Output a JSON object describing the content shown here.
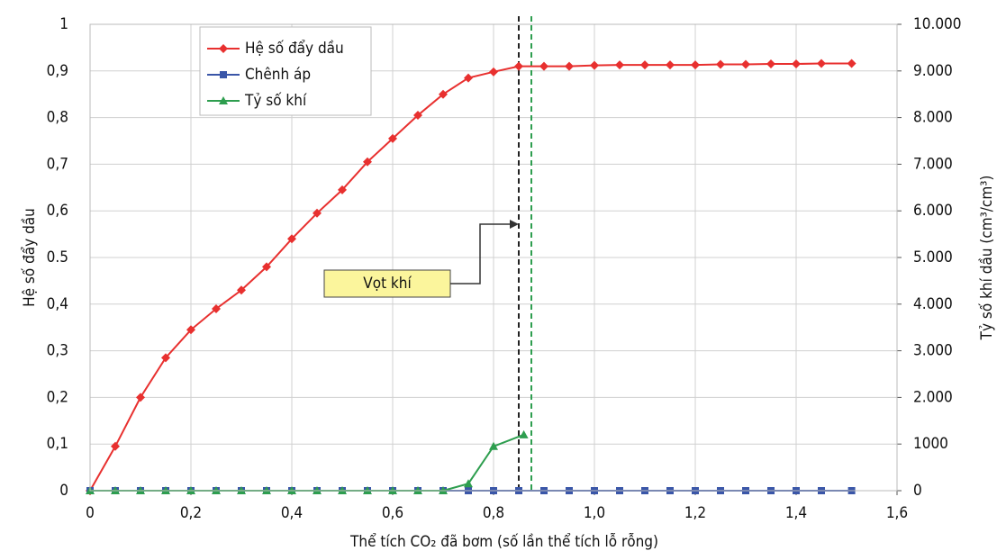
{
  "chart_data": {
    "type": "line",
    "xlabel": "Thể tích CO₂ đã bơm (số lần thể tích lỗ rỗng)",
    "ylabel": "Hệ số đẩy dầu",
    "y2label": "Tỷ số khí dầu (cm³/cm³)",
    "xlim": [
      0,
      1.6
    ],
    "xticks": [
      0,
      {
        "value": 0.2,
        "label": "0,2"
      },
      {
        "value": 0.4,
        "label": "0,4"
      },
      {
        "value": 0.6,
        "label": "0,6"
      },
      {
        "value": 0.8,
        "label": "0,8"
      },
      {
        "value": 1.0,
        "label": "1,0"
      },
      {
        "value": 1.2,
        "label": "1,2"
      },
      {
        "value": 1.4,
        "label": "1,4"
      },
      {
        "value": 1.6,
        "label": "1,6"
      }
    ],
    "ylim": [
      0,
      1
    ],
    "yticks": [
      0,
      {
        "value": 0.1,
        "label": "0,1"
      },
      {
        "value": 0.2,
        "label": "0,2"
      },
      {
        "value": 0.3,
        "label": "0,3"
      },
      {
        "value": 0.4,
        "label": "0,4"
      },
      {
        "value": 0.5,
        "label": "0.5"
      },
      {
        "value": 0.6,
        "label": "0,6"
      },
      {
        "value": 0.7,
        "label": "0,7"
      },
      {
        "value": 0.8,
        "label": "0,8"
      },
      {
        "value": 0.9,
        "label": "0,9"
      },
      1
    ],
    "y2lim": [
      0,
      10000
    ],
    "y2ticks": [
      0,
      1000,
      {
        "value": 2000,
        "label": "2.000"
      },
      {
        "value": 3000,
        "label": "3.000"
      },
      {
        "value": 4000,
        "label": "4.000"
      },
      {
        "value": 5000,
        "label": "5.000"
      },
      {
        "value": 6000,
        "label": "6.000"
      },
      {
        "value": 7000,
        "label": "7.000"
      },
      {
        "value": 8000,
        "label": "8.000"
      },
      {
        "value": 9000,
        "label": "9.000"
      },
      {
        "value": 10000,
        "label": "10.000"
      }
    ],
    "grid": true,
    "legend": "upper left",
    "series": [
      {
        "name": "Hệ số đẩy dầu",
        "color": "#e8302f",
        "marker": "diamond",
        "x": [
          0,
          0.05,
          0.1,
          0.15,
          0.2,
          0.25,
          0.3,
          0.35,
          0.4,
          0.45,
          0.5,
          0.55,
          0.6,
          0.65,
          0.7,
          0.75,
          0.8,
          0.85,
          0.9,
          0.95,
          1.0,
          1.05,
          1.1,
          1.15,
          1.2,
          1.25,
          1.3,
          1.35,
          1.4,
          1.45,
          1.51
        ],
        "values": [
          0,
          0.095,
          0.2,
          0.285,
          0.345,
          0.39,
          0.43,
          0.48,
          0.54,
          0.595,
          0.645,
          0.705,
          0.755,
          0.805,
          0.85,
          0.885,
          0.898,
          0.91,
          0.91,
          0.91,
          0.912,
          0.913,
          0.913,
          0.913,
          0.913,
          0.914,
          0.914,
          0.915,
          0.915,
          0.916,
          0.916
        ]
      },
      {
        "name": "Chênh áp",
        "color": "#3a56a8",
        "marker": "square",
        "x": [
          0,
          0.05,
          0.1,
          0.15,
          0.2,
          0.25,
          0.3,
          0.35,
          0.4,
          0.45,
          0.5,
          0.55,
          0.6,
          0.65,
          0.7,
          0.75,
          0.8,
          0.85,
          0.9,
          0.95,
          1.0,
          1.05,
          1.1,
          1.15,
          1.2,
          1.25,
          1.3,
          1.35,
          1.4,
          1.45,
          1.51
        ],
        "values": [
          0,
          0,
          0,
          0,
          0,
          0,
          0,
          0,
          0,
          0,
          0,
          0,
          0,
          0,
          0,
          0,
          0,
          0,
          0,
          0,
          0,
          0,
          0,
          0,
          0,
          0,
          0,
          0,
          0,
          0,
          0
        ]
      },
      {
        "name": "Tỷ số khí",
        "color": "#2e9e4f",
        "marker": "triangle",
        "axis": "y2",
        "x": [
          0,
          0.05,
          0.1,
          0.15,
          0.2,
          0.25,
          0.3,
          0.35,
          0.4,
          0.45,
          0.5,
          0.55,
          0.6,
          0.65,
          0.7,
          0.75,
          0.8,
          0.86
        ],
        "values": [
          0,
          0,
          0,
          0,
          0,
          0,
          0,
          0,
          0,
          0,
          0,
          0,
          0,
          0,
          0,
          150,
          950,
          1200
        ]
      }
    ],
    "reference_lines": [
      {
        "x": 0.85,
        "color": "#222222"
      },
      {
        "x": 0.875,
        "color": "#2e9e4f"
      }
    ],
    "annotation": "Vọt khí"
  }
}
